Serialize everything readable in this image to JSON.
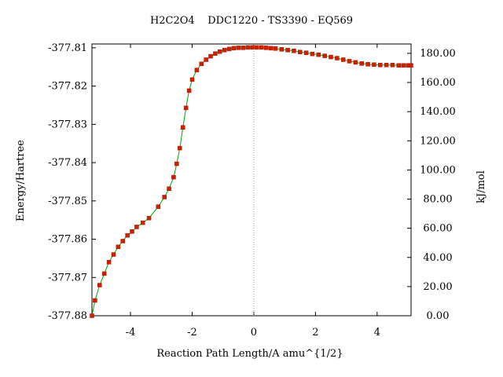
{
  "chart_data": {
    "type": "line",
    "title": "H2C2O4    DDC1220 - TS3390 - EQ569",
    "xlabel": "Reaction Path Length/A amu^{1/2}",
    "ylabel": "Energy/Hartree",
    "y2label": "kJ/mol",
    "xlim": [
      -5.25,
      5.1
    ],
    "ylim": [
      -377.88,
      -377.809
    ],
    "y2lim": [
      0,
      186.4
    ],
    "x_ticks": [
      {
        "value": -4,
        "label": "-4"
      },
      {
        "value": -2,
        "label": "-2"
      },
      {
        "value": 0,
        "label": "0"
      },
      {
        "value": 2,
        "label": "2"
      },
      {
        "value": 4,
        "label": "4"
      }
    ],
    "y_ticks": [
      {
        "value": -377.81,
        "label": "-377.81"
      },
      {
        "value": -377.82,
        "label": "-377.82"
      },
      {
        "value": -377.83,
        "label": "-377.83"
      },
      {
        "value": -377.84,
        "label": "-377.84"
      },
      {
        "value": -377.85,
        "label": "-377.85"
      },
      {
        "value": -377.86,
        "label": "-377.86"
      },
      {
        "value": -377.87,
        "label": "-377.87"
      },
      {
        "value": -377.88,
        "label": "-377.88"
      }
    ],
    "y2_ticks": [
      {
        "value": 0,
        "label": "0.00"
      },
      {
        "value": 20,
        "label": "20.00"
      },
      {
        "value": 40,
        "label": "40.00"
      },
      {
        "value": 60,
        "label": "60.00"
      },
      {
        "value": 80,
        "label": "80.00"
      },
      {
        "value": 100,
        "label": "100.00"
      },
      {
        "value": 120,
        "label": "120.00"
      },
      {
        "value": 140,
        "label": "140.00"
      },
      {
        "value": 160,
        "label": "160.00"
      },
      {
        "value": 180,
        "label": "180.00"
      }
    ],
    "ts_marker_x": 0,
    "grid": false,
    "colors": {
      "line": "#00aa00",
      "marker": "#cc2200",
      "ts_line": "#999999",
      "axis": "#000000"
    },
    "series": [
      {
        "x": [
          -5.25,
          -5.15,
          -5.0,
          -4.85,
          -4.7,
          -4.55,
          -4.4,
          -4.25,
          -4.1,
          -3.95,
          -3.8,
          -3.6,
          -3.4,
          -3.1,
          -2.9,
          -2.75,
          -2.6,
          -2.5,
          -2.4,
          -2.3,
          -2.2,
          -2.1,
          -2.0,
          -1.85,
          -1.7,
          -1.55,
          -1.4,
          -1.25,
          -1.1,
          -0.95,
          -0.8,
          -0.65,
          -0.5,
          -0.35,
          -0.2,
          -0.05,
          0.1,
          0.25,
          0.4,
          0.55,
          0.7,
          0.9,
          1.1,
          1.3,
          1.5,
          1.7,
          1.9,
          2.1,
          2.3,
          2.5,
          2.7,
          2.9,
          3.1,
          3.3,
          3.5,
          3.7,
          3.9,
          4.1,
          4.3,
          4.5,
          4.7,
          4.85,
          5.0,
          5.1
        ],
        "y": [
          -377.88,
          -377.876,
          -377.872,
          -377.869,
          -377.866,
          -377.864,
          -377.862,
          -377.8605,
          -377.859,
          -377.858,
          -377.8568,
          -377.8557,
          -377.8545,
          -377.8515,
          -377.849,
          -377.8468,
          -377.8438,
          -377.8403,
          -377.8362,
          -377.8308,
          -377.8257,
          -377.8212,
          -377.8183,
          -377.8158,
          -377.8142,
          -377.8131,
          -377.8122,
          -377.8115,
          -377.811,
          -377.8106,
          -377.8103,
          -377.8101,
          -377.81,
          -377.81,
          -377.8099,
          -377.8099,
          -377.8099,
          -377.8099,
          -377.81,
          -377.8101,
          -377.8102,
          -377.8104,
          -377.8106,
          -377.8108,
          -377.8111,
          -377.8113,
          -377.8116,
          -377.8118,
          -377.8121,
          -377.8124,
          -377.8127,
          -377.8131,
          -377.8135,
          -377.8138,
          -377.8141,
          -377.8143,
          -377.8144,
          -377.8145,
          -377.8145,
          -377.8145,
          -377.8146,
          -377.8146,
          -377.8146,
          -377.8146
        ]
      }
    ]
  }
}
